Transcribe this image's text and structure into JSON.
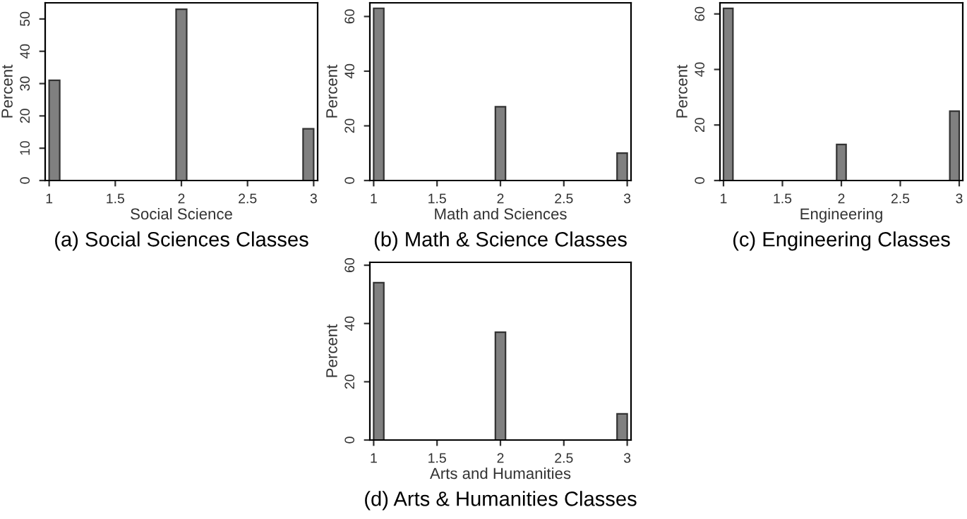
{
  "chart_data": [
    {
      "type": "histogram",
      "title": "(a) Social Sciences Classes",
      "xlabel": "Social Science",
      "ylabel": "Percent",
      "color": "#808080",
      "bins": [
        1,
        1.08,
        1.16,
        1.24,
        1.32,
        1.4,
        1.48,
        1.56,
        1.64,
        1.72,
        1.8,
        1.88,
        1.96,
        2.04,
        2.12,
        2.2,
        2.28,
        2.36,
        2.44,
        2.52,
        2.6,
        2.68,
        2.76,
        2.84,
        2.92,
        3
      ],
      "values": [
        31,
        0,
        0,
        0,
        0,
        0,
        0,
        0,
        0,
        0,
        0,
        0,
        53,
        0,
        0,
        0,
        0,
        0,
        0,
        0,
        0,
        0,
        0,
        0,
        16
      ],
      "xlim": [
        0.97,
        3.03
      ],
      "xticks": [
        1,
        1.5,
        2,
        2.5,
        3
      ],
      "ylim": [
        0,
        55
      ],
      "yticks": [
        0,
        10,
        20,
        30,
        40,
        50
      ]
    },
    {
      "type": "histogram",
      "title": "(b) Math & Science Classes",
      "xlabel": "Math and Sciences",
      "ylabel": "Percent",
      "color": "#808080",
      "bins": [
        1,
        1.08,
        1.16,
        1.24,
        1.32,
        1.4,
        1.48,
        1.56,
        1.64,
        1.72,
        1.8,
        1.88,
        1.96,
        2.04,
        2.12,
        2.2,
        2.28,
        2.36,
        2.44,
        2.52,
        2.6,
        2.68,
        2.76,
        2.84,
        2.92,
        3
      ],
      "values": [
        63,
        0,
        0,
        0,
        0,
        0,
        0,
        0,
        0,
        0,
        0,
        0,
        27,
        0,
        0,
        0,
        0,
        0,
        0,
        0,
        0,
        0,
        0,
        0,
        10
      ],
      "xlim": [
        0.97,
        3.03
      ],
      "xticks": [
        1,
        1.5,
        2,
        2.5,
        3
      ],
      "ylim": [
        0,
        65
      ],
      "yticks": [
        0,
        20,
        40,
        60
      ]
    },
    {
      "type": "histogram",
      "title": "(c) Engineering Classes",
      "xlabel": "Engineering",
      "ylabel": "Percent",
      "color": "#808080",
      "bins": [
        1,
        1.08,
        1.16,
        1.24,
        1.32,
        1.4,
        1.48,
        1.56,
        1.64,
        1.72,
        1.8,
        1.88,
        1.96,
        2.04,
        2.12,
        2.2,
        2.28,
        2.36,
        2.44,
        2.52,
        2.6,
        2.68,
        2.76,
        2.84,
        2.92,
        3
      ],
      "values": [
        62,
        0,
        0,
        0,
        0,
        0,
        0,
        0,
        0,
        0,
        0,
        0,
        13,
        0,
        0,
        0,
        0,
        0,
        0,
        0,
        0,
        0,
        0,
        0,
        25
      ],
      "xlim": [
        0.97,
        3.03
      ],
      "xticks": [
        1,
        1.5,
        2,
        2.5,
        3
      ],
      "ylim": [
        0,
        64
      ],
      "yticks": [
        0,
        20,
        40,
        60
      ]
    },
    {
      "type": "histogram",
      "title": "(d) Arts & Humanities Classes",
      "xlabel": "Arts and Humanities",
      "ylabel": "Percent",
      "color": "#808080",
      "bins": [
        1,
        1.08,
        1.16,
        1.24,
        1.32,
        1.4,
        1.48,
        1.56,
        1.64,
        1.72,
        1.8,
        1.88,
        1.96,
        2.04,
        2.12,
        2.2,
        2.28,
        2.36,
        2.44,
        2.52,
        2.6,
        2.68,
        2.76,
        2.84,
        2.92,
        3
      ],
      "values": [
        54,
        0,
        0,
        0,
        0,
        0,
        0,
        0,
        0,
        0,
        0,
        0,
        37,
        0,
        0,
        0,
        0,
        0,
        0,
        0,
        0,
        0,
        0,
        0,
        9
      ],
      "xlim": [
        0.97,
        3.03
      ],
      "xticks": [
        1,
        1.5,
        2,
        2.5,
        3
      ],
      "ylim": [
        0,
        61
      ],
      "yticks": [
        0,
        20,
        40,
        60
      ]
    }
  ]
}
